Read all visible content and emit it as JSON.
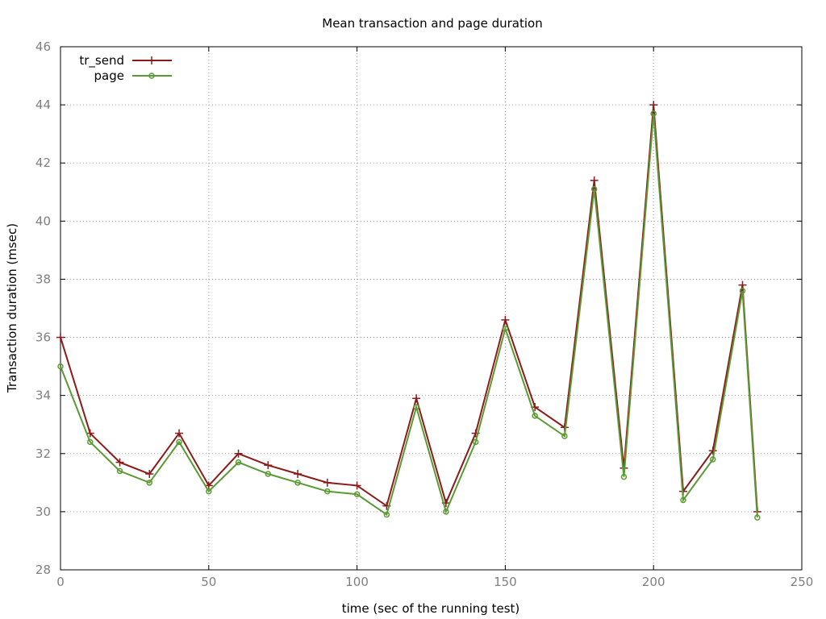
{
  "chart_data": {
    "type": "line",
    "title": "Mean transaction and page duration",
    "xlabel": "time (sec of the running test)",
    "ylabel": "Transaction duration (msec)",
    "xlim": [
      0,
      250
    ],
    "ylim": [
      28,
      46
    ],
    "xticks": [
      0,
      50,
      100,
      150,
      200,
      250
    ],
    "yticks": [
      28,
      30,
      32,
      34,
      36,
      38,
      40,
      42,
      44,
      46
    ],
    "grid": true,
    "legend_position": "top-left",
    "x": [
      0,
      10,
      20,
      30,
      40,
      50,
      60,
      70,
      80,
      90,
      100,
      110,
      120,
      130,
      140,
      150,
      160,
      170,
      180,
      190,
      200,
      210,
      220,
      230,
      235
    ],
    "series": [
      {
        "name": "tr_send",
        "color": "#8b1a1a",
        "marker": "plus",
        "values": [
          36.0,
          32.7,
          31.7,
          31.3,
          32.7,
          30.9,
          32.0,
          31.6,
          31.3,
          31.0,
          30.9,
          30.2,
          33.9,
          30.3,
          32.7,
          36.6,
          33.6,
          32.9,
          41.4,
          31.5,
          44.0,
          30.7,
          32.1,
          37.8,
          30.0
        ]
      },
      {
        "name": "page",
        "color": "#5a9a32",
        "marker": "circle",
        "values": [
          35.0,
          32.4,
          31.4,
          31.0,
          32.4,
          30.7,
          31.7,
          31.3,
          31.0,
          30.7,
          30.6,
          29.9,
          33.6,
          30.0,
          32.4,
          36.3,
          33.3,
          32.6,
          41.1,
          31.2,
          43.7,
          30.4,
          31.8,
          37.6,
          29.8
        ]
      }
    ]
  }
}
